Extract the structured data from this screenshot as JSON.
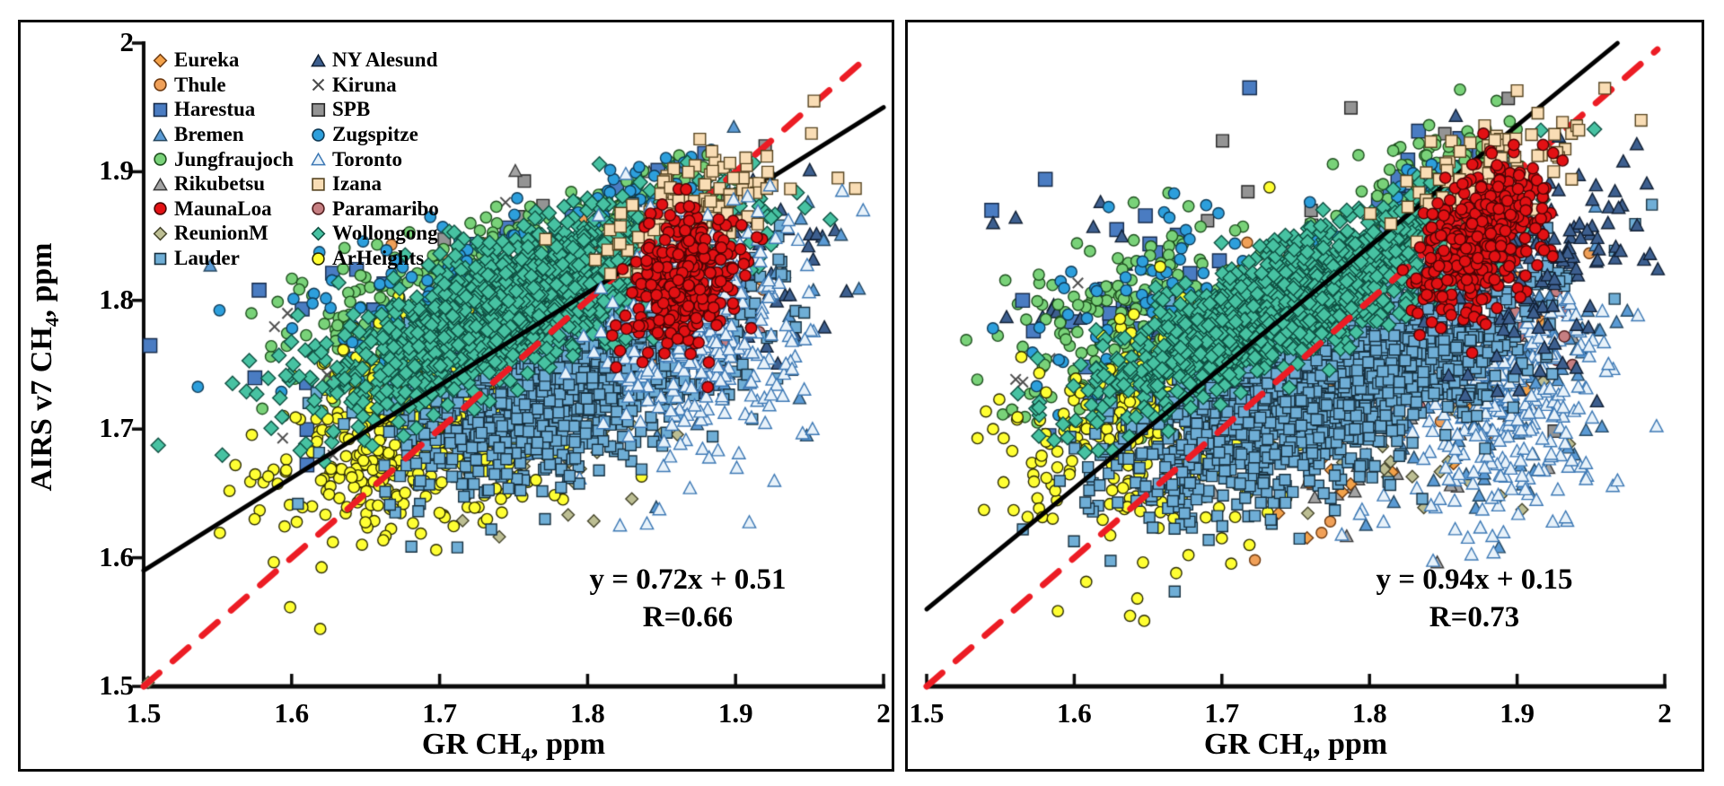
{
  "figure_description": "Two scatter plots comparing AIRS v7 CH4 retrievals against ground-based (GR) CH4 at many stations, with linear fit (black) and 1:1 line (red dashed)",
  "accent_colors": {
    "fit_line": "#000000",
    "identity_line": "#EC1C24",
    "panel_border": "#0a0a0a",
    "background": "#ffffff"
  },
  "marker_styles": {
    "Eureka": {
      "marker": "diamond",
      "fill": "#F3A24A",
      "edge": "#6E3A10",
      "size": 5.6
    },
    "Thule": {
      "marker": "circle",
      "fill": "#F0A058",
      "edge": "#6E3A10",
      "size": 6.0
    },
    "Harestua": {
      "marker": "square",
      "fill": "#4A7CC2",
      "edge": "#152A4A",
      "size": 7.6
    },
    "Bremen": {
      "marker": "triangle",
      "fill": "#5B9BD5",
      "edge": "#24465F",
      "size": 6.2
    },
    "Jungfraujoch": {
      "marker": "circle",
      "fill": "#79D279",
      "edge": "#1E4F1E",
      "size": 6.2
    },
    "Rikubetsu": {
      "marker": "triangle",
      "fill": "#A3A3A3",
      "edge": "#3A3A3A",
      "size": 6.2
    },
    "MaunaLoa": {
      "marker": "circle",
      "fill": "#E31114",
      "edge": "#4A0505",
      "size": 6.2
    },
    "ReunionM": {
      "marker": "diamond",
      "fill": "#BCBE93",
      "edge": "#45452B",
      "size": 5.6
    },
    "Lauder": {
      "marker": "square",
      "fill": "#6FAED6",
      "edge": "#17303F",
      "size": 6.0
    },
    "NY Alesund": {
      "marker": "triangle",
      "fill": "#3D5F8F",
      "edge": "#101F33",
      "size": 6.4
    },
    "Kiruna": {
      "marker": "x",
      "fill": "none",
      "edge": "#4D4D4D",
      "size": 6.0
    },
    "SPB": {
      "marker": "square",
      "fill": "#949494",
      "edge": "#262626",
      "size": 6.8
    },
    "Zugspitze": {
      "marker": "circle",
      "fill": "#2D9FDC",
      "edge": "#0E3A56",
      "size": 6.2
    },
    "Toronto": {
      "marker": "triangle",
      "fill": "#E8F2FA",
      "edge": "#3C78B4",
      "size": 6.4
    },
    "Izana": {
      "marker": "square",
      "fill": "#F9DDB5",
      "edge": "#55431F",
      "size": 6.4
    },
    "Paramaribo": {
      "marker": "circle",
      "fill": "#C67F82",
      "edge": "#4F1D1D",
      "size": 6.2
    },
    "Wollongong": {
      "marker": "diamond",
      "fill": "#47C2A2",
      "edge": "#0F4F41",
      "size": 6.6
    },
    "ArHeights": {
      "marker": "circle",
      "fill": "#FFFF33",
      "edge": "#2B2B00",
      "size": 6.2
    }
  },
  "legend": {
    "position": "top-left of left panel",
    "columns": 2,
    "col1": [
      "Eureka",
      "Thule",
      "Harestua",
      "Bremen",
      "Jungfraujoch",
      "Rikubetsu",
      "MaunaLoa",
      "ReunionM",
      "Lauder"
    ],
    "col2": [
      "NY Alesund",
      "Kiruna",
      "SPB",
      "Zugspitze",
      "Toronto",
      "Izana",
      "Paramaribo",
      "Wollongong",
      "ArHeights"
    ]
  },
  "chart_data": [
    {
      "type": "scatter",
      "panel": "left",
      "xlabel": "GR CH4, ppm",
      "xlabel_pre": "GR CH",
      "xlabel_sub": "4",
      "xlabel_post": ", ppm",
      "ylabel": "AIRS v7 CH4, ppm",
      "ylabel_pre": "AIRS v7 CH",
      "ylabel_sub": "4",
      "ylabel_post": ", ppm",
      "xlim": [
        1.5,
        2
      ],
      "ylim": [
        1.5,
        2
      ],
      "x_ticks": [
        "1.5",
        "1.6",
        "1.7",
        "1.8",
        "1.9",
        "2"
      ],
      "y_ticks": [
        "2",
        "1.9",
        "1.8",
        "1.7",
        "1.6",
        "1.5"
      ],
      "grid": false,
      "fit_line": {
        "slope": 0.72,
        "intercept": 0.51,
        "equation": "y = 0.72x + 0.51",
        "r_label": "R=0.66",
        "r": 0.66,
        "color": "#000000",
        "x_range": [
          1.5,
          2.0
        ]
      },
      "identity_line": {
        "style": "dashed",
        "color": "#EC1C24",
        "from": [
          1.5,
          1.5
        ],
        "to": [
          1.988,
          1.988
        ]
      },
      "series": [
        {
          "name": "Kiruna",
          "n": 25,
          "cx": 1.7,
          "cy": 1.77,
          "sx": 0.05,
          "sy": 0.04,
          "rho": 0.3
        },
        {
          "name": "SPB",
          "n": 28,
          "cx": 1.79,
          "cy": 1.83,
          "sx": 0.05,
          "sy": 0.035,
          "rho": 0.4
        },
        {
          "name": "Rikubetsu",
          "n": 55,
          "cx": 1.8,
          "cy": 1.78,
          "sx": 0.055,
          "sy": 0.045,
          "rho": 0.3
        },
        {
          "name": "Harestua",
          "n": 40,
          "cx": 1.71,
          "cy": 1.79,
          "sx": 0.065,
          "sy": 0.045,
          "rho": 0.3
        },
        {
          "name": "Harestua",
          "n": 20,
          "cx": 1.845,
          "cy": 1.872,
          "sx": 0.02,
          "sy": 0.016,
          "rho": 0.3
        },
        {
          "name": "Thule",
          "n": 45,
          "cx": 1.78,
          "cy": 1.8,
          "sx": 0.07,
          "sy": 0.04,
          "rho": 0.4
        },
        {
          "name": "Eureka",
          "n": 35,
          "cx": 1.78,
          "cy": 1.79,
          "sx": 0.06,
          "sy": 0.04,
          "rho": 0.4
        },
        {
          "name": "ReunionM",
          "n": 32,
          "cx": 1.79,
          "cy": 1.7,
          "sx": 0.05,
          "sy": 0.035,
          "rho": 0.3
        },
        {
          "name": "Paramaribo",
          "n": 38,
          "cx": 1.85,
          "cy": 1.785,
          "sx": 0.035,
          "sy": 0.045,
          "rho": 0.2
        },
        {
          "name": "NY Alesund",
          "n": 55,
          "cx": 1.9,
          "cy": 1.825,
          "sx": 0.04,
          "sy": 0.04,
          "rho": 0.2
        },
        {
          "name": "Bremen",
          "n": 85,
          "cx": 1.86,
          "cy": 1.79,
          "sx": 0.05,
          "sy": 0.05,
          "rho": 0.2
        },
        {
          "name": "Jungfraujoch",
          "n": 260,
          "cx": 1.695,
          "cy": 1.8,
          "sx": 0.05,
          "sy": 0.032,
          "rho": 0.5
        },
        {
          "name": "Jungfraujoch",
          "n": 80,
          "cx": 1.845,
          "cy": 1.878,
          "sx": 0.028,
          "sy": 0.018,
          "rho": 0.4
        },
        {
          "name": "Zugspitze",
          "n": 120,
          "cx": 1.705,
          "cy": 1.805,
          "sx": 0.055,
          "sy": 0.035,
          "rho": 0.4
        },
        {
          "name": "Zugspitze",
          "n": 45,
          "cx": 1.85,
          "cy": 1.88,
          "sx": 0.025,
          "sy": 0.018,
          "rho": 0.4
        },
        {
          "name": "Toronto",
          "n": 25,
          "cx": 1.76,
          "cy": 1.715,
          "sx": 0.02,
          "sy": 0.02,
          "rho": 0.1
        },
        {
          "name": "ArHeights",
          "n": 640,
          "cx": 1.705,
          "cy": 1.715,
          "sx": 0.05,
          "sy": 0.045,
          "rho": 0.45
        },
        {
          "name": "Lauder",
          "n": 1250,
          "cx": 1.79,
          "cy": 1.745,
          "sx": 0.055,
          "sy": 0.042,
          "rho": 0.55
        },
        {
          "name": "Wollongong",
          "n": 1450,
          "cx": 1.76,
          "cy": 1.8,
          "sx": 0.065,
          "sy": 0.038,
          "rho": 0.75
        },
        {
          "name": "Izana",
          "n": 135,
          "cx": 1.875,
          "cy": 1.872,
          "sx": 0.03,
          "sy": 0.023,
          "rho": 0.6,
          "top": true
        },
        {
          "name": "Toronto",
          "n": 310,
          "cx": 1.885,
          "cy": 1.775,
          "sx": 0.033,
          "sy": 0.05,
          "rho": 0.2,
          "top": true
        },
        {
          "name": "MaunaLoa",
          "n": 370,
          "cx": 1.865,
          "cy": 1.815,
          "sx": 0.018,
          "sy": 0.028,
          "rho": 0.3,
          "top": true
        }
      ],
      "outlier_points": [
        {
          "series": "Bremen",
          "x": 1.545,
          "y": 1.827
        },
        {
          "series": "Harestua",
          "x": 1.578,
          "y": 1.808
        },
        {
          "series": "ArHeights",
          "x": 1.558,
          "y": 1.652
        },
        {
          "series": "ArHeights",
          "x": 1.575,
          "y": 1.63
        },
        {
          "series": "ArHeights",
          "x": 1.562,
          "y": 1.672
        },
        {
          "series": "Lauder",
          "x": 1.712,
          "y": 1.608
        },
        {
          "series": "SPB",
          "x": 1.92,
          "y": 1.92
        },
        {
          "series": "Izana",
          "x": 1.953,
          "y": 1.955
        },
        {
          "series": "Izana",
          "x": 1.981,
          "y": 1.887
        },
        {
          "series": "NY Alesund",
          "x": 1.975,
          "y": 1.807
        },
        {
          "series": "ReunionM",
          "x": 1.503,
          "y": 1.503
        },
        {
          "series": "Toronto",
          "x": 1.952,
          "y": 1.7
        },
        {
          "series": "Kiruna",
          "x": 1.624,
          "y": 1.742
        }
      ]
    },
    {
      "type": "scatter",
      "panel": "right",
      "xlabel": "GR CH4, ppm",
      "xlabel_pre": "GR CH",
      "xlabel_sub": "4",
      "xlabel_post": ", ppm",
      "ylabel": "",
      "xlim": [
        1.5,
        2
      ],
      "ylim": [
        1.5,
        2
      ],
      "x_ticks": [
        "1.5",
        "1.6",
        "1.7",
        "1.8",
        "1.9",
        "2"
      ],
      "y_ticks": [],
      "grid": false,
      "fit_line": {
        "slope": 0.94,
        "intercept": 0.15,
        "equation": "y = 0.94x + 0.15",
        "r_label": "R=0.73",
        "r": 0.73,
        "color": "#000000",
        "x_range": [
          1.5,
          1.968
        ]
      },
      "identity_line": {
        "style": "dashed",
        "color": "#EC1C24",
        "from": [
          1.5,
          1.5
        ],
        "to": [
          1.995,
          1.995
        ]
      },
      "series": [
        {
          "name": "Kiruna",
          "n": 22,
          "cx": 1.63,
          "cy": 1.755,
          "sx": 0.04,
          "sy": 0.035,
          "rho": 0.3
        },
        {
          "name": "SPB",
          "n": 26,
          "cx": 1.78,
          "cy": 1.83,
          "sx": 0.07,
          "sy": 0.05,
          "rho": 0.3
        },
        {
          "name": "Rikubetsu",
          "n": 70,
          "cx": 1.82,
          "cy": 1.72,
          "sx": 0.055,
          "sy": 0.05,
          "rho": 0.3
        },
        {
          "name": "Thule",
          "n": 55,
          "cx": 1.82,
          "cy": 1.75,
          "sx": 0.06,
          "sy": 0.05,
          "rho": 0.3
        },
        {
          "name": "Eureka",
          "n": 40,
          "cx": 1.8,
          "cy": 1.72,
          "sx": 0.06,
          "sy": 0.05,
          "rho": 0.3
        },
        {
          "name": "ReunionM",
          "n": 40,
          "cx": 1.83,
          "cy": 1.71,
          "sx": 0.05,
          "sy": 0.04,
          "rho": 0.3
        },
        {
          "name": "Paramaribo",
          "n": 42,
          "cx": 1.87,
          "cy": 1.79,
          "sx": 0.04,
          "sy": 0.045,
          "rho": 0.2
        },
        {
          "name": "Harestua",
          "n": 35,
          "cx": 1.655,
          "cy": 1.79,
          "sx": 0.05,
          "sy": 0.05,
          "rho": 0.2
        },
        {
          "name": "Harestua",
          "n": 55,
          "cx": 1.855,
          "cy": 1.885,
          "sx": 0.022,
          "sy": 0.02,
          "rho": 0.3
        },
        {
          "name": "NY Alesund",
          "n": 14,
          "cx": 1.6,
          "cy": 1.81,
          "sx": 0.045,
          "sy": 0.05,
          "rho": 0.1
        },
        {
          "name": "Jungfraujoch",
          "n": 175,
          "cx": 1.64,
          "cy": 1.785,
          "sx": 0.045,
          "sy": 0.04,
          "rho": 0.3
        },
        {
          "name": "Jungfraujoch",
          "n": 110,
          "cx": 1.845,
          "cy": 1.895,
          "sx": 0.025,
          "sy": 0.018,
          "rho": 0.3
        },
        {
          "name": "Zugspitze",
          "n": 100,
          "cx": 1.665,
          "cy": 1.795,
          "sx": 0.05,
          "sy": 0.04,
          "rho": 0.3
        },
        {
          "name": "Zugspitze",
          "n": 40,
          "cx": 1.85,
          "cy": 1.89,
          "sx": 0.02,
          "sy": 0.015,
          "rho": 0.3
        },
        {
          "name": "ArHeights",
          "n": 350,
          "cx": 1.66,
          "cy": 1.705,
          "sx": 0.045,
          "sy": 0.05,
          "rho": 0.3
        },
        {
          "name": "Bremen",
          "n": 140,
          "cx": 1.88,
          "cy": 1.745,
          "sx": 0.04,
          "sy": 0.05,
          "rho": 0.2
        },
        {
          "name": "Toronto",
          "n": 320,
          "cx": 1.89,
          "cy": 1.725,
          "sx": 0.035,
          "sy": 0.05,
          "rho": 0.2
        },
        {
          "name": "Lauder",
          "n": 1650,
          "cx": 1.77,
          "cy": 1.735,
          "sx": 0.065,
          "sy": 0.046,
          "rho": 0.65
        },
        {
          "name": "Wollongong",
          "n": 1380,
          "cx": 1.75,
          "cy": 1.8,
          "sx": 0.06,
          "sy": 0.038,
          "rho": 0.8
        },
        {
          "name": "NY Alesund",
          "n": 120,
          "cx": 1.92,
          "cy": 1.835,
          "sx": 0.035,
          "sy": 0.045,
          "rho": 0.2,
          "top": true
        },
        {
          "name": "Izana",
          "n": 105,
          "cx": 1.88,
          "cy": 1.895,
          "sx": 0.03,
          "sy": 0.024,
          "rho": 0.5,
          "top": true
        },
        {
          "name": "MaunaLoa",
          "n": 410,
          "cx": 1.875,
          "cy": 1.85,
          "sx": 0.02,
          "sy": 0.03,
          "rho": 0.4,
          "top": true
        }
      ],
      "outlier_points": [
        {
          "series": "NY Alesund",
          "x": 1.545,
          "y": 1.86
        },
        {
          "series": "Harestua",
          "x": 1.565,
          "y": 1.8
        },
        {
          "series": "SPB",
          "x": 1.894,
          "y": 1.957
        },
        {
          "series": "Izana",
          "x": 1.984,
          "y": 1.94
        },
        {
          "series": "Izana",
          "x": 1.9,
          "y": 1.963
        },
        {
          "series": "ArHeights",
          "x": 1.558,
          "y": 1.683
        },
        {
          "series": "ArHeights",
          "x": 1.545,
          "y": 1.7
        },
        {
          "series": "Jungfraujoch",
          "x": 1.576,
          "y": 1.82
        },
        {
          "series": "NY Alesund",
          "x": 1.99,
          "y": 1.836
        },
        {
          "series": "Paramaribo",
          "x": 1.932,
          "y": 1.772
        },
        {
          "series": "Toronto",
          "x": 1.968,
          "y": 1.66
        },
        {
          "series": "Wollongong",
          "x": 1.62,
          "y": 1.742
        }
      ]
    }
  ]
}
